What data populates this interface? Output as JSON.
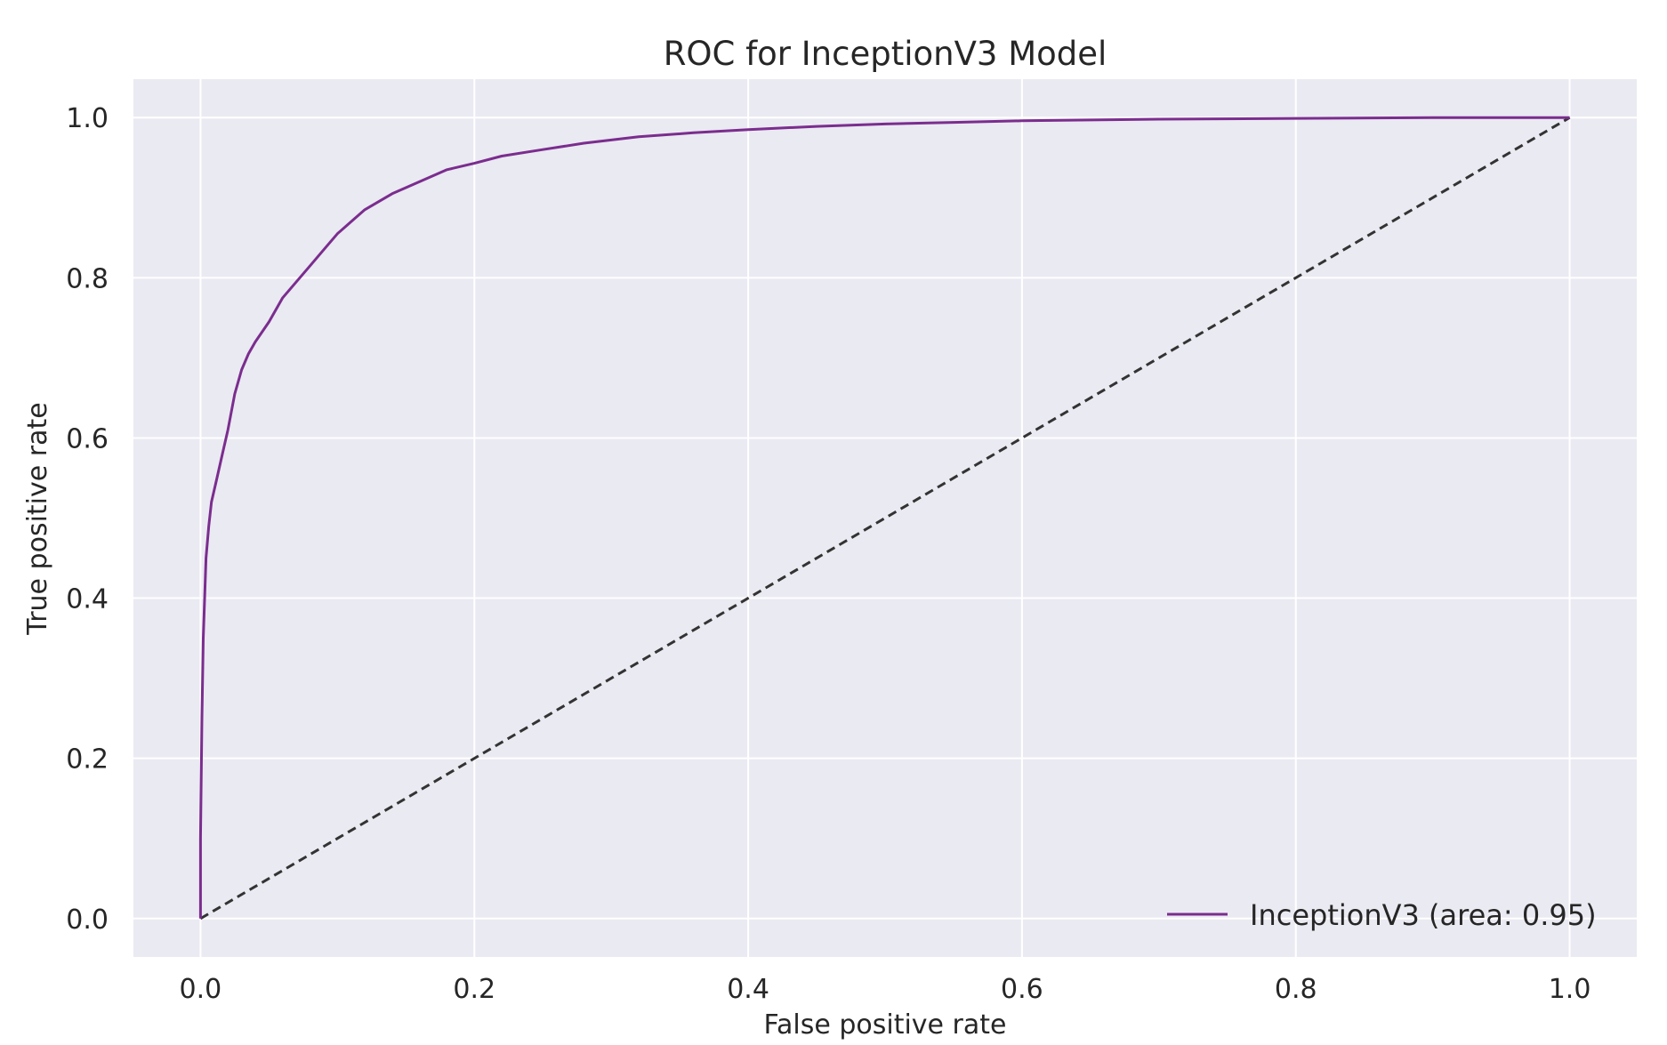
{
  "chart_data": {
    "type": "line",
    "title": "ROC for InceptionV3 Model",
    "xlabel": "False positive rate",
    "ylabel": "True positive rate",
    "xlim": [
      -0.049,
      1.049
    ],
    "ylim": [
      -0.048,
      1.048
    ],
    "xticks": [
      0.0,
      0.2,
      0.4,
      0.6,
      0.8,
      1.0
    ],
    "yticks": [
      0.0,
      0.2,
      0.4,
      0.6,
      0.8,
      1.0
    ],
    "xtick_labels": [
      "0.0",
      "0.2",
      "0.4",
      "0.6",
      "0.8",
      "1.0"
    ],
    "ytick_labels": [
      "0.0",
      "0.2",
      "0.4",
      "0.6",
      "0.8",
      "1.0"
    ],
    "grid": true,
    "legend_position": "lower-right",
    "background_color": "#EAEAF2",
    "grid_color": "#FFFFFF",
    "series": [
      {
        "name": "InceptionV3 (area: 0.95)",
        "color": "#7B2D8E",
        "style": "solid",
        "x": [
          0.0,
          0.0,
          0.001,
          0.002,
          0.004,
          0.006,
          0.008,
          0.012,
          0.016,
          0.02,
          0.025,
          0.03,
          0.035,
          0.04,
          0.05,
          0.06,
          0.07,
          0.08,
          0.09,
          0.1,
          0.11,
          0.12,
          0.13,
          0.14,
          0.16,
          0.18,
          0.2,
          0.22,
          0.25,
          0.28,
          0.32,
          0.36,
          0.4,
          0.45,
          0.5,
          0.55,
          0.6,
          0.65,
          0.7,
          0.8,
          0.9,
          1.0
        ],
        "y": [
          0.0,
          0.1,
          0.25,
          0.35,
          0.45,
          0.49,
          0.52,
          0.55,
          0.58,
          0.61,
          0.655,
          0.685,
          0.705,
          0.72,
          0.745,
          0.775,
          0.795,
          0.815,
          0.835,
          0.855,
          0.87,
          0.885,
          0.895,
          0.905,
          0.92,
          0.935,
          0.943,
          0.952,
          0.96,
          0.968,
          0.976,
          0.981,
          0.985,
          0.989,
          0.992,
          0.994,
          0.996,
          0.997,
          0.998,
          0.999,
          1.0,
          1.0
        ]
      },
      {
        "name": "",
        "color": "#333333",
        "style": "dashed",
        "x": [
          0.0,
          1.0
        ],
        "y": [
          0.0,
          1.0
        ]
      }
    ]
  }
}
